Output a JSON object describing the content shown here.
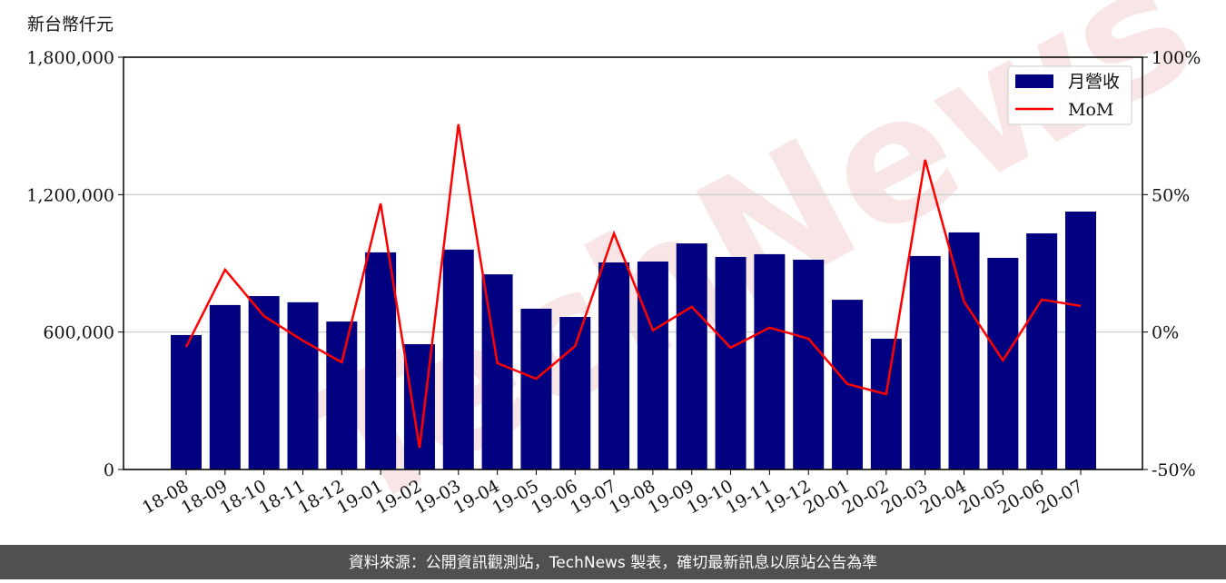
{
  "chart_data": {
    "type": "bar-line",
    "y_label": "新台幣仟元",
    "watermark": "TechNews",
    "source": "資料來源：公開資訊觀測站，TechNews 製表，確切最新訊息以原站公告為準",
    "categories": [
      "18-08",
      "18-09",
      "18-10",
      "18-11",
      "18-12",
      "19-01",
      "19-02",
      "19-03",
      "19-04",
      "19-05",
      "19-06",
      "19-07",
      "19-08",
      "19-09",
      "19-10",
      "19-11",
      "19-12",
      "20-01",
      "20-02",
      "20-03",
      "20-04",
      "20-05",
      "20-06",
      "20-07"
    ],
    "series": [
      {
        "name": "月營收",
        "color": "#000080",
        "type": "bar",
        "values": [
          587000,
          718000,
          757000,
          730000,
          646000,
          948000,
          547000,
          960000,
          852000,
          702000,
          666000,
          904000,
          908000,
          987000,
          928000,
          940000,
          916000,
          741000,
          571000,
          932000,
          1035000,
          924000,
          1031000,
          1126000
        ]
      },
      {
        "name": "MoM",
        "color": "#ff0000",
        "type": "line",
        "axis": "y2",
        "values": [
          -5.4,
          22.7,
          5.8,
          -3.1,
          -11.0,
          46.8,
          -42.1,
          75.6,
          -11.3,
          -17.0,
          -5.1,
          35.9,
          0.6,
          9.2,
          -5.7,
          1.6,
          -2.4,
          -18.9,
          -22.6,
          62.7,
          11.1,
          -10.3,
          11.8,
          9.5
        ]
      }
    ],
    "ylim": [
      0,
      1800000
    ],
    "yticks": [
      0,
      {
        "value": 600000,
        "label": "600,000"
      },
      {
        "value": 1200000,
        "label": "1,200,000"
      },
      {
        "value": 1800000,
        "label": "1,800,000"
      }
    ],
    "y2lim": [
      -50,
      100
    ],
    "y2ticks": [
      {
        "value": -50,
        "label": "-50%"
      },
      {
        "value": 0,
        "label": "0%"
      },
      {
        "value": 50,
        "label": "50%"
      },
      {
        "value": 100,
        "label": "100%"
      }
    ],
    "grid": true,
    "legend": "upper right"
  }
}
